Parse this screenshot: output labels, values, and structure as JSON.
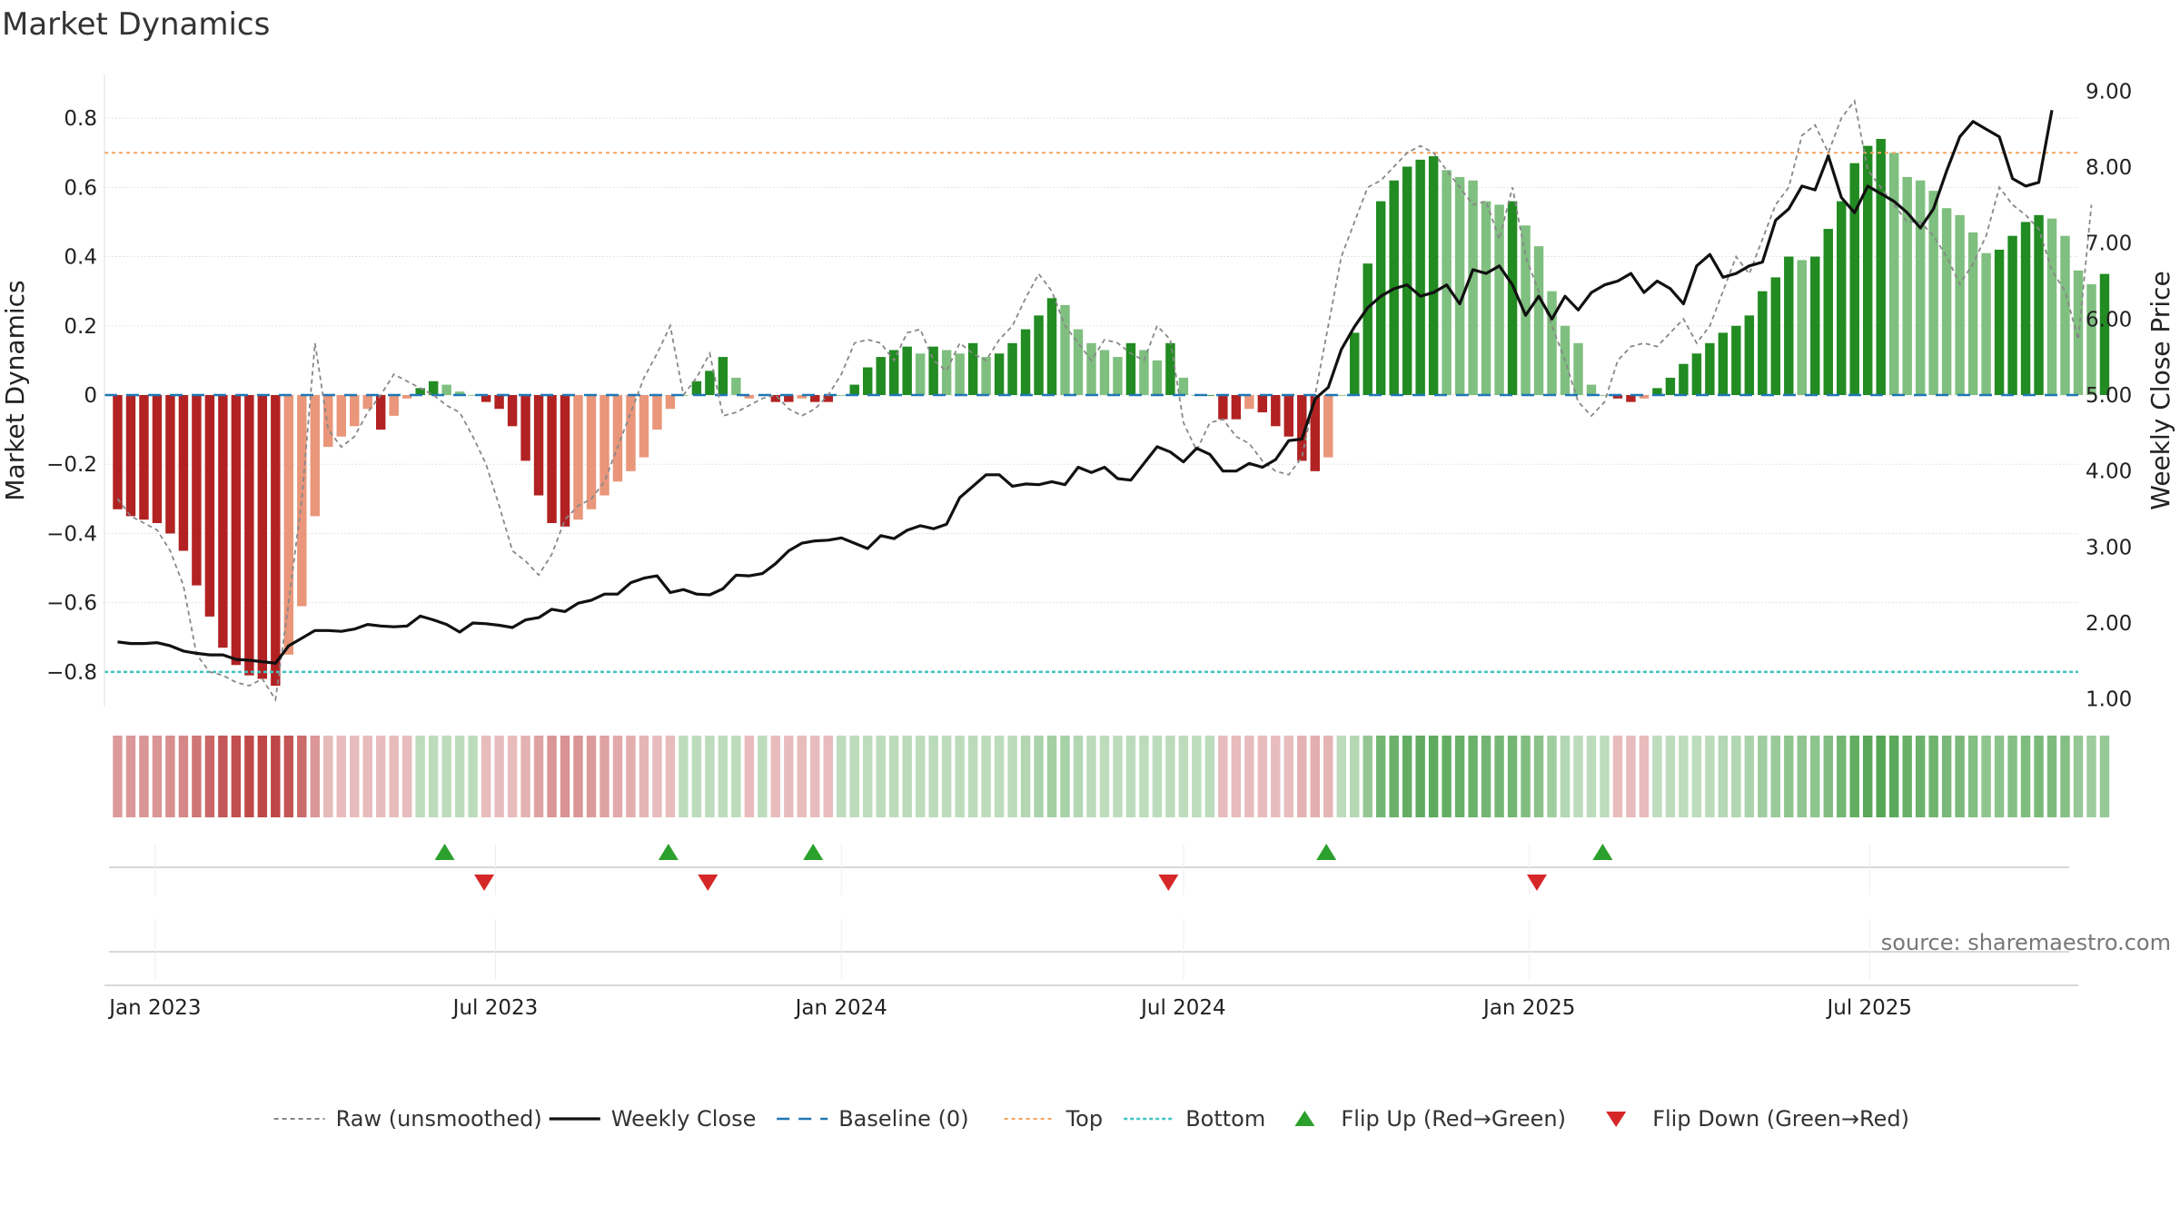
{
  "chart_data": {
    "type": "bar",
    "title": "Market Dynamics",
    "ylabel": "Market Dynamics",
    "y2label": "Weekly Close Price",
    "ylim": [
      -0.9,
      0.9
    ],
    "y2lim": [
      0.9,
      9.1
    ],
    "yticks": [
      -0.8,
      -0.6,
      -0.4,
      -0.2,
      0,
      0.2,
      0.4,
      0.6,
      0.8
    ],
    "yticklabels": [
      "−0.8",
      "−0.6",
      "−0.4",
      "−0.2",
      "0",
      "0.2",
      "0.4",
      "0.6",
      "0.8"
    ],
    "y2ticks": [
      1,
      2,
      3,
      4,
      5,
      6,
      7,
      8,
      9
    ],
    "y2ticklabels": [
      "1.00",
      "2.00",
      "3.00",
      "4.00",
      "5.00",
      "6.00",
      "7.00",
      "8.00",
      "9.00"
    ],
    "x_start": "2022-12-05",
    "x_end": "2025-10-20",
    "xticks": [
      {
        "date": "2023-01-01",
        "label": "Jan 2023"
      },
      {
        "date": "2023-07-01",
        "label": "Jul 2023"
      },
      {
        "date": "2024-01-01",
        "label": "Jan 2024"
      },
      {
        "date": "2024-07-01",
        "label": "Jul 2024"
      },
      {
        "date": "2025-01-01",
        "label": "Jan 2025"
      },
      {
        "date": "2025-07-01",
        "label": "Jul 2025"
      }
    ],
    "dates_start": "2022-12-12",
    "dates_step_days": 7,
    "dynamics": [
      -0.33,
      -0.35,
      -0.36,
      -0.37,
      -0.4,
      -0.45,
      -0.55,
      -0.64,
      -0.73,
      -0.78,
      -0.81,
      -0.82,
      -0.84,
      -0.75,
      -0.61,
      -0.35,
      -0.15,
      -0.12,
      -0.09,
      -0.04,
      -0.1,
      -0.06,
      -0.01,
      0.02,
      0.04,
      0.03,
      0.01,
      0.0,
      -0.02,
      -0.04,
      -0.09,
      -0.19,
      -0.29,
      -0.37,
      -0.38,
      -0.36,
      -0.33,
      -0.29,
      -0.25,
      -0.22,
      -0.18,
      -0.1,
      -0.04,
      0.0,
      0.04,
      0.07,
      0.11,
      0.05,
      -0.01,
      0.0,
      -0.02,
      -0.02,
      -0.01,
      -0.02,
      -0.02,
      0.0,
      0.03,
      0.08,
      0.11,
      0.13,
      0.14,
      0.12,
      0.14,
      0.13,
      0.12,
      0.15,
      0.11,
      0.12,
      0.15,
      0.19,
      0.23,
      0.28,
      0.26,
      0.19,
      0.15,
      0.13,
      0.11,
      0.15,
      0.13,
      0.1,
      0.15,
      0.05,
      0.0,
      0.0,
      -0.07,
      -0.07,
      -0.04,
      -0.05,
      -0.09,
      -0.12,
      -0.19,
      -0.22,
      -0.18,
      0.0,
      0.18,
      0.38,
      0.56,
      0.62,
      0.66,
      0.68,
      0.69,
      0.65,
      0.63,
      0.62,
      0.56,
      0.55,
      0.56,
      0.49,
      0.43,
      0.3,
      0.2,
      0.15,
      0.03,
      0.0,
      -0.01,
      -0.02,
      -0.01,
      0.02,
      0.05,
      0.09,
      0.12,
      0.15,
      0.18,
      0.2,
      0.23,
      0.3,
      0.34,
      0.4,
      0.39,
      0.4,
      0.48,
      0.56,
      0.67,
      0.72,
      0.74,
      0.7,
      0.63,
      0.62,
      0.59,
      0.54,
      0.52,
      0.47,
      0.41,
      0.42,
      0.46,
      0.5,
      0.52,
      0.51,
      0.46,
      0.36,
      0.32,
      0.35
    ],
    "raw": [
      -0.3,
      -0.35,
      -0.37,
      -0.39,
      -0.45,
      -0.55,
      -0.75,
      -0.8,
      -0.81,
      -0.83,
      -0.84,
      -0.82,
      -0.88,
      -0.6,
      -0.3,
      0.15,
      -0.1,
      -0.15,
      -0.12,
      -0.05,
      0.0,
      0.06,
      0.04,
      0.02,
      0.0,
      -0.03,
      -0.05,
      -0.12,
      -0.2,
      -0.32,
      -0.45,
      -0.48,
      -0.52,
      -0.46,
      -0.36,
      -0.32,
      -0.3,
      -0.25,
      -0.15,
      -0.05,
      0.05,
      0.12,
      0.2,
      0.0,
      0.05,
      0.12,
      -0.06,
      -0.05,
      -0.03,
      -0.01,
      0.0,
      -0.04,
      -0.06,
      -0.04,
      0.0,
      0.06,
      0.15,
      0.16,
      0.15,
      0.1,
      0.18,
      0.19,
      0.1,
      0.07,
      0.15,
      0.12,
      0.1,
      0.16,
      0.2,
      0.28,
      0.35,
      0.3,
      0.2,
      0.15,
      0.1,
      0.16,
      0.15,
      0.12,
      0.1,
      0.2,
      0.16,
      -0.08,
      -0.16,
      -0.08,
      -0.07,
      -0.12,
      -0.14,
      -0.19,
      -0.22,
      -0.23,
      -0.18,
      0.0,
      0.2,
      0.4,
      0.5,
      0.6,
      0.62,
      0.66,
      0.7,
      0.72,
      0.7,
      0.65,
      0.6,
      0.55,
      0.56,
      0.45,
      0.6,
      0.4,
      0.3,
      0.2,
      0.1,
      -0.02,
      -0.06,
      -0.02,
      0.1,
      0.14,
      0.15,
      0.14,
      0.18,
      0.22,
      0.15,
      0.2,
      0.3,
      0.4,
      0.35,
      0.45,
      0.55,
      0.6,
      0.75,
      0.78,
      0.7,
      0.8,
      0.85,
      0.65,
      0.6,
      0.55,
      0.5,
      0.5,
      0.46,
      0.4,
      0.32,
      0.38,
      0.46,
      0.6,
      0.55,
      0.52,
      0.48,
      0.36,
      0.3,
      0.16,
      0.55
    ],
    "close": [
      1.75,
      1.73,
      1.73,
      1.74,
      1.7,
      1.63,
      1.6,
      1.58,
      1.58,
      1.52,
      1.51,
      1.49,
      1.47,
      1.7,
      1.8,
      1.9,
      1.9,
      1.89,
      1.92,
      1.98,
      1.96,
      1.95,
      1.96,
      2.09,
      2.04,
      1.98,
      1.88,
      2.0,
      1.99,
      1.97,
      1.94,
      2.04,
      2.07,
      2.18,
      2.15,
      2.26,
      2.3,
      2.38,
      2.38,
      2.53,
      2.59,
      2.62,
      2.4,
      2.44,
      2.38,
      2.37,
      2.45,
      2.63,
      2.62,
      2.65,
      2.78,
      2.95,
      3.05,
      3.08,
      3.09,
      3.12,
      3.05,
      2.98,
      3.15,
      3.11,
      3.22,
      3.28,
      3.24,
      3.3,
      3.65,
      3.8,
      3.95,
      3.95,
      3.8,
      3.83,
      3.82,
      3.86,
      3.82,
      4.05,
      3.98,
      4.05,
      3.9,
      3.88,
      4.1,
      4.32,
      4.25,
      4.12,
      4.3,
      4.22,
      4.0,
      4.0,
      4.1,
      4.05,
      4.15,
      4.4,
      4.42,
      4.95,
      5.1,
      5.6,
      5.9,
      6.15,
      6.3,
      6.4,
      6.45,
      6.3,
      6.35,
      6.45,
      6.2,
      6.65,
      6.6,
      6.7,
      6.45,
      6.05,
      6.3,
      6.0,
      6.3,
      6.12,
      6.35,
      6.45,
      6.5,
      6.6,
      6.35,
      6.5,
      6.4,
      6.2,
      6.7,
      6.85,
      6.55,
      6.6,
      6.7,
      6.75,
      7.3,
      7.45,
      7.75,
      7.7,
      8.15,
      7.6,
      7.4,
      7.75,
      7.65,
      7.55,
      7.4,
      7.2,
      7.45,
      7.95,
      8.4,
      8.6,
      8.5,
      8.4,
      7.85,
      7.75,
      7.8,
      8.75
    ],
    "top": 0.7,
    "bottom": -0.8,
    "baseline": 0,
    "flip_up_dates": [
      "2023-06-04",
      "2023-10-01",
      "2023-12-17",
      "2024-09-15",
      "2025-02-09"
    ],
    "flip_down_dates": [
      "2023-06-25",
      "2023-10-22",
      "2024-06-23",
      "2025-01-05"
    ],
    "legend": [
      {
        "label": "Raw (unsmoothed)",
        "key": "raw"
      },
      {
        "label": "Weekly Close",
        "key": "close"
      },
      {
        "label": "Baseline (0)",
        "key": "baseline"
      },
      {
        "label": "Top",
        "key": "top"
      },
      {
        "label": "Bottom",
        "key": "bottom"
      },
      {
        "label": "Flip Up (Red→Green)",
        "key": "flip_up"
      },
      {
        "label": "Flip Down (Green→Red)",
        "key": "flip_down"
      }
    ],
    "source_text": "source: sharemaestro.com",
    "colors": {
      "strong_red": "#b22222",
      "light_red": "#e9967a",
      "strong_green": "#228b22",
      "light_green": "#7fbf7f",
      "raw_line": "#888888",
      "close_line": "#111111",
      "baseline": "#1f77b4",
      "top": "#f4a460",
      "bottom": "#40c4c4",
      "flip_up": "#2ca02c",
      "flip_down": "#d62728"
    }
  }
}
